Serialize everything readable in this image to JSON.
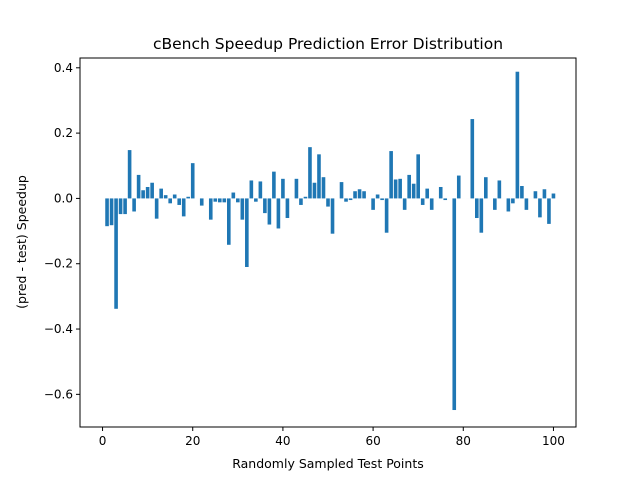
{
  "chart_data": {
    "type": "bar",
    "title": "cBench Speedup Prediction Error Distribution",
    "xlabel": "Randomly Sampled Test Points",
    "ylabel": "(pred - test) Speedup",
    "xlim": [
      -5,
      105
    ],
    "ylim": [
      -0.7,
      0.43
    ],
    "xticks": [
      0,
      20,
      40,
      60,
      80,
      100
    ],
    "xtick_labels": [
      "0",
      "20",
      "40",
      "60",
      "80",
      "100"
    ],
    "yticks": [
      -0.6,
      -0.4,
      -0.2,
      0.0,
      0.2,
      0.4
    ],
    "ytick_labels": [
      "−0.6",
      "−0.4",
      "−0.2",
      "0.0",
      "0.2",
      "0.4"
    ],
    "grid": false,
    "bar_color": "#1f77b4",
    "x": [
      1,
      2,
      3,
      4,
      5,
      6,
      7,
      8,
      9,
      10,
      11,
      12,
      13,
      14,
      15,
      16,
      17,
      18,
      19,
      20,
      21,
      22,
      23,
      24,
      25,
      26,
      27,
      28,
      29,
      30,
      31,
      32,
      33,
      34,
      35,
      36,
      37,
      38,
      39,
      40,
      41,
      42,
      43,
      44,
      45,
      46,
      47,
      48,
      49,
      50,
      51,
      52,
      53,
      54,
      55,
      56,
      57,
      58,
      59,
      60,
      61,
      62,
      63,
      64,
      65,
      66,
      67,
      68,
      69,
      70,
      71,
      72,
      73,
      74,
      75,
      76,
      77,
      78,
      79,
      80,
      81,
      82,
      83,
      84,
      85,
      86,
      87,
      88,
      89,
      90,
      91,
      92,
      93,
      94,
      95,
      96,
      97,
      98,
      99,
      100
    ],
    "values": [
      -0.085,
      -0.082,
      -0.338,
      -0.048,
      -0.048,
      0.148,
      -0.04,
      0.072,
      0.025,
      0.035,
      0.048,
      -0.062,
      0.03,
      0.01,
      -0.015,
      0.012,
      -0.02,
      -0.055,
      0.005,
      0.108,
      0.0,
      -0.022,
      0.0,
      -0.065,
      -0.01,
      -0.012,
      -0.012,
      -0.142,
      0.018,
      -0.012,
      -0.065,
      -0.21,
      0.055,
      -0.01,
      0.052,
      -0.045,
      -0.08,
      0.082,
      -0.092,
      0.06,
      -0.06,
      0.0,
      0.06,
      -0.02,
      0.005,
      0.157,
      0.048,
      0.135,
      0.065,
      -0.025,
      -0.108,
      0.0,
      0.05,
      -0.01,
      -0.005,
      0.022,
      0.028,
      0.022,
      0.0,
      -0.035,
      0.012,
      -0.005,
      -0.105,
      0.145,
      0.058,
      0.06,
      -0.035,
      0.072,
      0.045,
      0.135,
      -0.02,
      0.03,
      -0.035,
      0.0,
      0.035,
      -0.005,
      0.0,
      -0.648,
      0.07,
      0.0,
      0.0,
      0.243,
      -0.06,
      -0.105,
      0.065,
      0.0,
      -0.035,
      0.055,
      0.0,
      -0.04,
      -0.015,
      0.388,
      0.038,
      -0.035,
      0.0,
      0.022,
      -0.058,
      0.028,
      -0.078,
      0.015
    ]
  }
}
